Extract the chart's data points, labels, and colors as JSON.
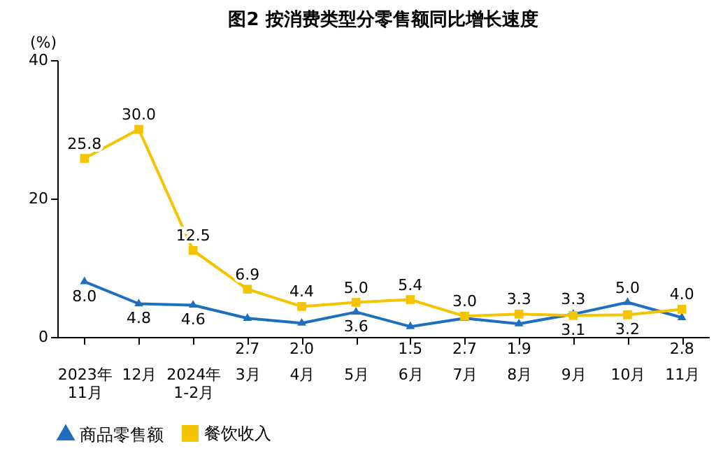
{
  "chart_data": {
    "type": "line",
    "title": "图2 按消费类型分零售额同比增长速度",
    "ylabel": "(%)",
    "categories": [
      "2023年\n11月",
      "12月",
      "2024年\n1-2月",
      "3月",
      "4月",
      "5月",
      "6月",
      "7月",
      "8月",
      "9月",
      "10月",
      "11月"
    ],
    "series": [
      {
        "name": "商品零售额",
        "color": "#1f6fbf",
        "marker": "triangle",
        "values": [
          8.0,
          4.8,
          4.6,
          2.7,
          2.0,
          3.6,
          1.5,
          2.7,
          1.9,
          3.3,
          5.0,
          2.8
        ],
        "value_labels": [
          "8.0",
          "4.8",
          "4.6",
          "2.7",
          "2.0",
          "3.6",
          "1.5",
          "2.7",
          "1.9",
          "3.3",
          "5.0",
          "2.8"
        ]
      },
      {
        "name": "餐饮收入",
        "color": "#f5c400",
        "marker": "square",
        "values": [
          25.8,
          30.0,
          12.5,
          6.9,
          4.4,
          5.0,
          5.4,
          3.0,
          3.3,
          3.1,
          3.2,
          4.0
        ],
        "value_labels": [
          "25.8",
          "30.0",
          "12.5",
          "6.9",
          "4.4",
          "5.0",
          "5.4",
          "3.0",
          "3.3",
          "3.1",
          "3.2",
          "4.0"
        ]
      }
    ],
    "ylim": [
      0,
      40
    ],
    "yticks": [
      0,
      20,
      40
    ],
    "grid": false,
    "legend": "bottom",
    "data_labels": true,
    "line_style": "solid"
  }
}
